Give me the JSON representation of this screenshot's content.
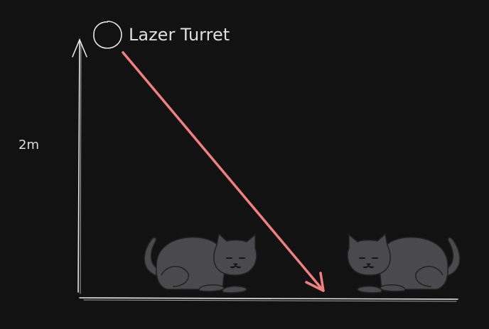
{
  "diagram": {
    "turret_label": "Lazer Turret",
    "height_label": "2m"
  },
  "colors": {
    "background": "#121212",
    "lines": "#e6e6e6",
    "laser": "#f08080",
    "cat_body": "#4a4a4c",
    "cat_outline": "#222222",
    "text": "#dedede"
  },
  "icons": {
    "turret": "circle-outline-icon",
    "cat": "cat-icon"
  }
}
